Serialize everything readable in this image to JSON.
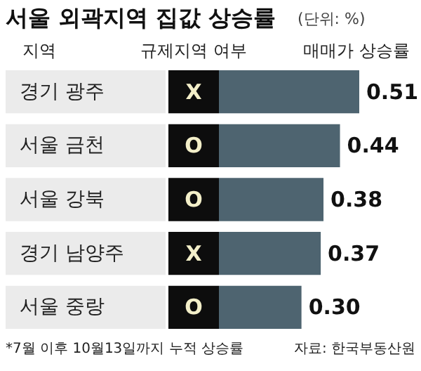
{
  "chart_data": {
    "type": "bar",
    "orientation": "horizontal",
    "title": "서울 외곽지역 집값 상승률",
    "subtitle": "(단위: %)",
    "ylabel": "지역",
    "xlabel": "매매가 상승률",
    "categories": [
      "경기 광주",
      "서울 금천",
      "서울 강북",
      "경기 남양주",
      "서울 중랑"
    ],
    "values": [
      0.51,
      0.44,
      0.38,
      0.37,
      0.3
    ],
    "color": "#4e6470",
    "value_labels": [
      "0.51",
      "0.44",
      "0.38",
      "0.37",
      "0.30"
    ],
    "annotations": [
      "규제지역 여부",
      "*7월 이후 10월13일까지 누적 상승률",
      "자료: 한국부동산원",
      {
        "text": "X",
        "y": "경기 광주"
      },
      {
        "text": "O",
        "y": "서울 금천"
      },
      {
        "text": "O",
        "y": "서울 강북"
      },
      {
        "text": "X",
        "y": "경기 남양주"
      },
      {
        "text": "O",
        "y": "서울 중랑"
      }
    ]
  }
}
